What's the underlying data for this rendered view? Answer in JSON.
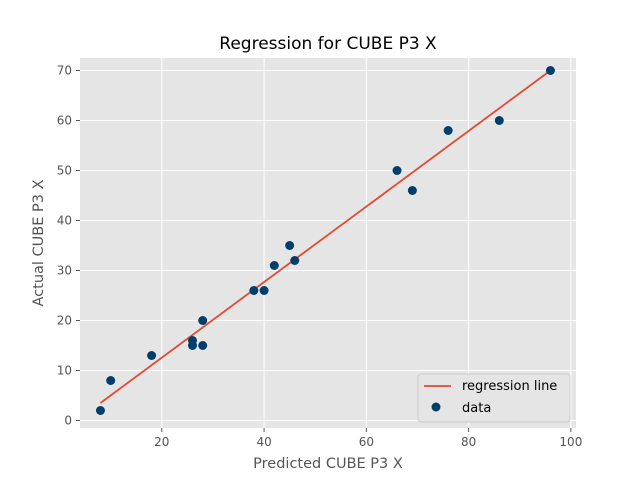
{
  "chart_data": {
    "type": "scatter",
    "title": "Regression for CUBE P3 X",
    "xlabel": "Predicted CUBE P3 X",
    "ylabel": "Actual CUBE P3 X",
    "xlim": [
      4,
      101
    ],
    "ylim": [
      -1.5,
      72.5
    ],
    "xticks": [
      20,
      40,
      60,
      80,
      100
    ],
    "yticks": [
      0,
      10,
      20,
      30,
      40,
      50,
      60,
      70
    ],
    "grid": true,
    "legend_position": "bottom-right",
    "series": [
      {
        "name": "regression line",
        "kind": "line",
        "color": "#E24A33",
        "x": [
          8,
          96
        ],
        "y": [
          3.5,
          70
        ]
      },
      {
        "name": "data",
        "kind": "scatter",
        "color": "#023E6B",
        "points": [
          {
            "x": 8,
            "y": 2
          },
          {
            "x": 10,
            "y": 8
          },
          {
            "x": 18,
            "y": 13
          },
          {
            "x": 26,
            "y": 15
          },
          {
            "x": 26,
            "y": 16
          },
          {
            "x": 28,
            "y": 15
          },
          {
            "x": 28,
            "y": 20
          },
          {
            "x": 38,
            "y": 26
          },
          {
            "x": 40,
            "y": 26
          },
          {
            "x": 42,
            "y": 31
          },
          {
            "x": 45,
            "y": 35
          },
          {
            "x": 46,
            "y": 32
          },
          {
            "x": 66,
            "y": 50
          },
          {
            "x": 69,
            "y": 46
          },
          {
            "x": 76,
            "y": 58
          },
          {
            "x": 86,
            "y": 60
          },
          {
            "x": 96,
            "y": 70
          }
        ]
      }
    ],
    "legend": {
      "line_label": "regression line",
      "scatter_label": "data"
    }
  },
  "colors": {
    "plot_background": "#E5E5E5",
    "grid": "#FFFFFF",
    "tick_text": "#555555"
  }
}
